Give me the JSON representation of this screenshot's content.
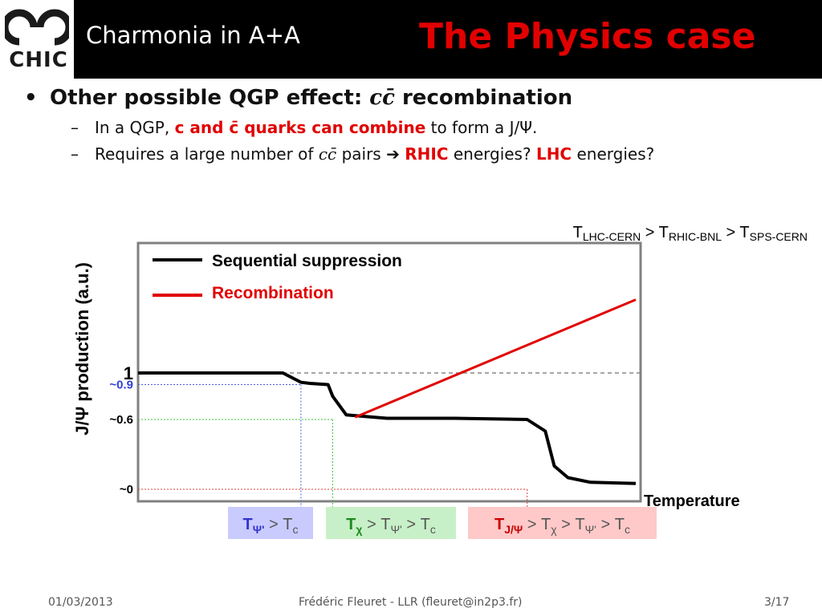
{
  "header": {
    "logo_text": "CHIC",
    "subtitle": "Charmonia in A+A",
    "title": "The Physics case"
  },
  "bullets": {
    "main_prefix": "Other possible QGP effect: ",
    "main_cc": "cc̄",
    "main_suffix": " recombination",
    "line1_prefix": "In a QGP, ",
    "line1_red": "c and c̄ quarks can combine",
    "line1_suffix": " to form a J/Ψ.",
    "line2_prefix": "Requires a large number of ",
    "line2_cc": "cc̄",
    "line2_mid": " pairs ",
    "line2_arrow": "➔",
    "line2_rhic": "RHIC",
    "line2_mid2": " energies? ",
    "line2_lhc": "LHC",
    "line2_suffix": " energies?"
  },
  "chart_data": {
    "type": "line",
    "temperature_order": {
      "t1": "T",
      "s1": "LHC-CERN",
      "gt1": " > T",
      "s2": "RHIC-BNL",
      "gt2": " > T",
      "s3": "SPS-CERN"
    },
    "ylabel": "J/Ψ production (a.u.)",
    "xlabel": "Temperature",
    "y_ticks": [
      {
        "label": "1",
        "value": 1.0,
        "color": "#000000"
      },
      {
        "label": "~0.9",
        "value": 0.9,
        "color": "#2f3fd6"
      },
      {
        "label": "~0.6",
        "value": 0.6,
        "color": "#000000"
      },
      {
        "label": "~0",
        "value": 0.0,
        "color": "#000000"
      }
    ],
    "series": [
      {
        "name": "Sequential suppression",
        "color": "#000000",
        "x": [
          0,
          0.32,
          0.36,
          0.38,
          0.42,
          0.43,
          0.46,
          0.55,
          0.7,
          0.86,
          0.9,
          0.92,
          0.95,
          1.0,
          1.1
        ],
        "y": [
          1.0,
          1.0,
          0.92,
          0.91,
          0.9,
          0.8,
          0.64,
          0.61,
          0.61,
          0.6,
          0.5,
          0.2,
          0.1,
          0.06,
          0.05
        ]
      },
      {
        "name": "Recombination",
        "color": "#e10000",
        "x": [
          0.48,
          1.1
        ],
        "y": [
          0.62,
          1.63
        ]
      }
    ],
    "thresholds": [
      {
        "label_t": "T",
        "label_sub": "Ψ'",
        "label_rest": " > T",
        "label_rest_sub": "c",
        "color": "#3333cc",
        "bg": "#c9cbff"
      },
      {
        "label_t": "T",
        "label_sub": "χ",
        "label_rest": " > T",
        "label_rest_sub": "Ψ'",
        "label_rest2": " > T",
        "label_rest2_sub": "c",
        "color": "#1d8a1d",
        "bg": "#c8f0c8"
      },
      {
        "label_t": "T",
        "label_sub": "J/Ψ",
        "label_rest": " > T",
        "label_rest_sub": "χ",
        "label_rest2": " > T",
        "label_rest2_sub": "Ψ'",
        "label_rest3": " > T",
        "label_rest3_sub": "c",
        "color": "#cc0000",
        "bg": "#ffc9c9"
      }
    ]
  },
  "footer": {
    "date": "01/03/2013",
    "author": "Frédéric Fleuret - LLR (fleuret@in2p3.fr)",
    "page": "3/17"
  },
  "colors": {
    "header_bg": "#000000",
    "title_red": "#e10000",
    "recomb_red": "#e10000"
  }
}
